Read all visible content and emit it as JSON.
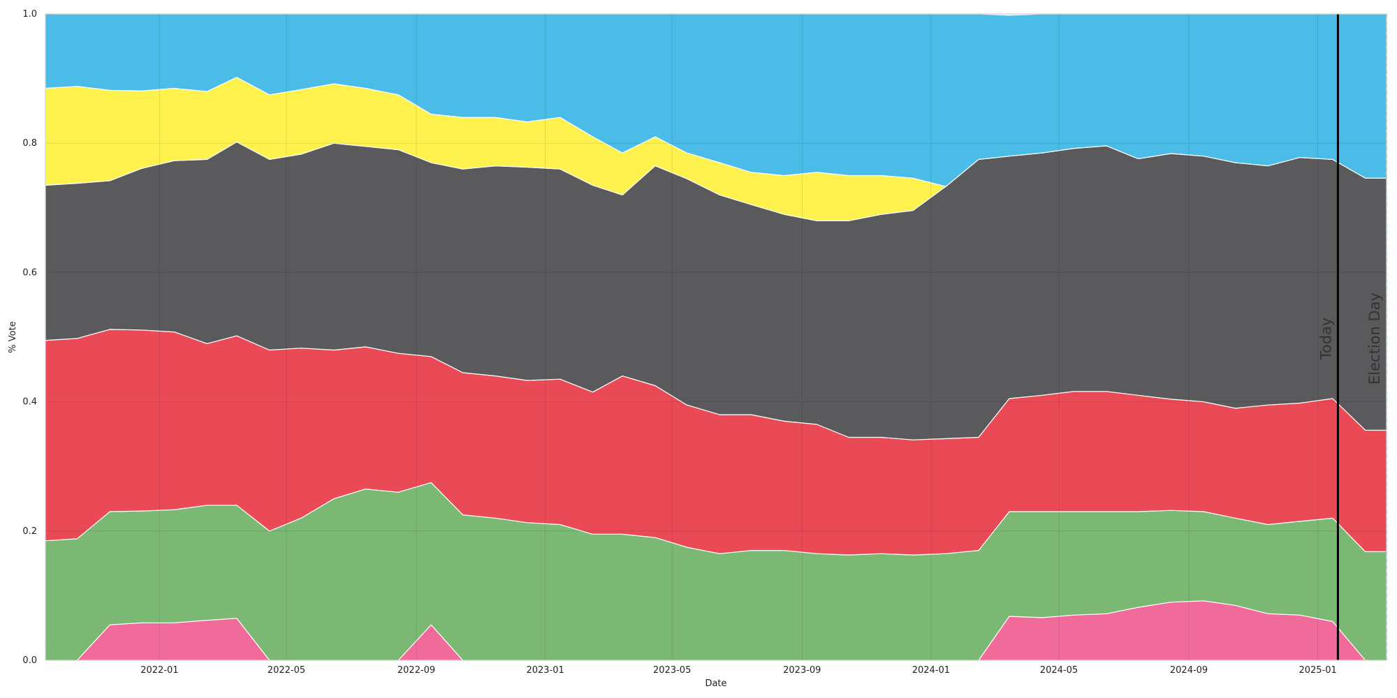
{
  "chart_data": {
    "type": "area",
    "stacked": true,
    "xlabel": "Date",
    "ylabel": "% Vote",
    "ylim": [
      0,
      1
    ],
    "xlim": [
      "2021-09-15",
      "2025-03-07"
    ],
    "grid": true,
    "y_ticks": [
      "0.0",
      "0.2",
      "0.4",
      "0.6",
      "0.8",
      "1.0"
    ],
    "x_ticks": [
      "2022-01",
      "2022-05",
      "2022-09",
      "2023-01",
      "2023-05",
      "2023-09",
      "2024-01",
      "2024-05",
      "2024-09",
      "2025-01"
    ],
    "vertical_lines": [
      {
        "label": "Today",
        "date": "2025-01-20",
        "style": "solid",
        "color": "#000000"
      },
      {
        "label": "Election Day",
        "date": "2025-03-07",
        "style": "dashed",
        "color": "#5aa56a"
      }
    ],
    "x": [
      "2021-09-15",
      "2021-10-15",
      "2021-11-15",
      "2021-12-15",
      "2022-01-15",
      "2022-02-15",
      "2022-03-15",
      "2022-04-15",
      "2022-05-15",
      "2022-06-15",
      "2022-07-15",
      "2022-08-15",
      "2022-09-15",
      "2022-10-15",
      "2022-11-15",
      "2022-12-15",
      "2023-01-15",
      "2023-02-15",
      "2023-03-15",
      "2023-04-15",
      "2023-05-15",
      "2023-06-15",
      "2023-07-15",
      "2023-08-15",
      "2023-09-15",
      "2023-10-15",
      "2023-11-15",
      "2023-12-15",
      "2024-01-15",
      "2024-02-15",
      "2024-03-15",
      "2024-04-15",
      "2024-05-15",
      "2024-06-15",
      "2024-07-15",
      "2024-08-15",
      "2024-09-15",
      "2024-10-15",
      "2024-11-15",
      "2024-12-15",
      "2025-01-15",
      "2025-02-15",
      "2025-03-07"
    ],
    "series": [
      {
        "color": "#f06a9a",
        "values": [
          0.0,
          0.0,
          0.055,
          0.058,
          0.058,
          0.062,
          0.065,
          0.0,
          0.0,
          0.0,
          0.0,
          0.0,
          0.055,
          0.0,
          0.0,
          0.0,
          0.0,
          0.0,
          0.0,
          0.0,
          0.0,
          0.0,
          0.0,
          0.0,
          0.0,
          0.0,
          0.0,
          0.0,
          0.0,
          0.0,
          0.068,
          0.066,
          0.07,
          0.072,
          0.082,
          0.09,
          0.092,
          0.085,
          0.072,
          0.07,
          0.06,
          0.0,
          0.0
        ]
      },
      {
        "color": "#7ab874",
        "values": [
          0.185,
          0.188,
          0.175,
          0.173,
          0.175,
          0.178,
          0.175,
          0.2,
          0.22,
          0.25,
          0.265,
          0.26,
          0.22,
          0.225,
          0.22,
          0.213,
          0.21,
          0.195,
          0.195,
          0.19,
          0.175,
          0.165,
          0.17,
          0.17,
          0.165,
          0.163,
          0.165,
          0.163,
          0.165,
          0.17,
          0.162,
          0.164,
          0.16,
          0.158,
          0.148,
          0.142,
          0.138,
          0.135,
          0.138,
          0.145,
          0.16,
          0.168,
          0.168
        ]
      },
      {
        "color": "#ea4a55",
        "values": [
          0.31,
          0.31,
          0.282,
          0.28,
          0.275,
          0.25,
          0.262,
          0.28,
          0.263,
          0.23,
          0.22,
          0.215,
          0.195,
          0.22,
          0.22,
          0.22,
          0.225,
          0.22,
          0.245,
          0.235,
          0.22,
          0.215,
          0.21,
          0.2,
          0.2,
          0.182,
          0.18,
          0.178,
          0.178,
          0.175,
          0.175,
          0.18,
          0.186,
          0.186,
          0.18,
          0.172,
          0.17,
          0.17,
          0.185,
          0.183,
          0.185,
          0.188,
          0.188
        ]
      },
      {
        "color": "#5a5a5c",
        "values": [
          0.24,
          0.24,
          0.23,
          0.25,
          0.265,
          0.285,
          0.3,
          0.295,
          0.3,
          0.32,
          0.31,
          0.315,
          0.3,
          0.315,
          0.325,
          0.33,
          0.325,
          0.32,
          0.28,
          0.34,
          0.35,
          0.34,
          0.325,
          0.32,
          0.315,
          0.335,
          0.345,
          0.355,
          0.39,
          0.43,
          0.375,
          0.375,
          0.376,
          0.38,
          0.366,
          0.38,
          0.38,
          0.38,
          0.37,
          0.38,
          0.37,
          0.39,
          0.39
        ]
      },
      {
        "color": "#fff14e",
        "values": [
          0.15,
          0.15,
          0.14,
          0.12,
          0.112,
          0.105,
          0.1,
          0.1,
          0.1,
          0.092,
          0.09,
          0.085,
          0.075,
          0.08,
          0.075,
          0.07,
          0.08,
          0.075,
          0.065,
          0.045,
          0.04,
          0.05,
          0.05,
          0.06,
          0.075,
          0.07,
          0.06,
          0.05,
          0.0,
          0.0,
          0.0,
          0.0,
          0.0,
          0.0,
          0.0,
          0.0,
          0.0,
          0.0,
          0.0,
          0.0,
          0.0,
          0.0,
          0.0
        ]
      },
      {
        "color": "#4bbce8",
        "values": [
          0.115,
          0.112,
          0.118,
          0.119,
          0.115,
          0.12,
          0.098,
          0.125,
          0.117,
          0.108,
          0.115,
          0.125,
          0.155,
          0.16,
          0.16,
          0.167,
          0.16,
          0.19,
          0.215,
          0.19,
          0.215,
          0.23,
          0.245,
          0.25,
          0.245,
          0.25,
          0.25,
          0.254,
          0.267,
          0.225,
          0.218,
          0.215,
          0.208,
          0.204,
          0.224,
          0.216,
          0.22,
          0.23,
          0.235,
          0.222,
          0.225,
          0.254,
          0.254
        ]
      }
    ]
  }
}
